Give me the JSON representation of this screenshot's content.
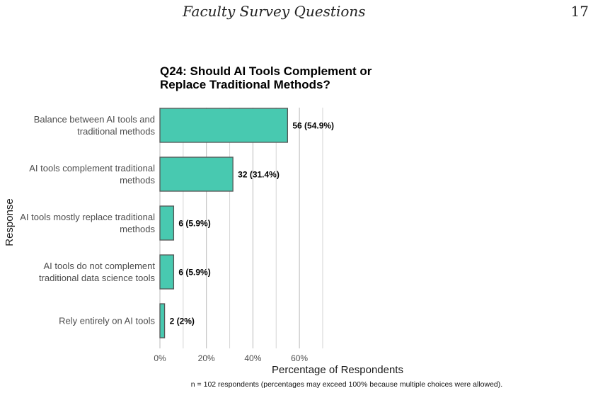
{
  "page": {
    "running_head": "Faculty Survey Questions",
    "page_number": "17"
  },
  "chart_data": {
    "type": "bar",
    "orientation": "horizontal",
    "title_lines": [
      "Q24: Should AI Tools Complement or",
      "Replace Traditional Methods?"
    ],
    "xlabel": "Percentage of Respondents",
    "ylabel": "Response",
    "note": "n = 102 respondents (percentages may exceed 100% because multiple choices were allowed).",
    "xlim": [
      0,
      70
    ],
    "xticks": [
      0,
      20,
      40,
      60
    ],
    "xtick_labels": [
      "0%",
      "20%",
      "40%",
      "60%"
    ],
    "grid": true,
    "bar_color": "#48c9b0",
    "bar_edge_color": "#555555",
    "categories": [
      {
        "label_lines": [
          "Balance between AI tools and",
          "traditional methods"
        ],
        "value": 54.9,
        "data_label": "56 (54.9%)"
      },
      {
        "label_lines": [
          "AI tools complement traditional",
          "methods"
        ],
        "value": 31.4,
        "data_label": "32 (31.4%)"
      },
      {
        "label_lines": [
          "AI tools mostly replace traditional",
          "methods"
        ],
        "value": 5.9,
        "data_label": "6 (5.9%)"
      },
      {
        "label_lines": [
          "AI tools do not complement",
          "traditional data science tools"
        ],
        "value": 5.9,
        "data_label": "6 (5.9%)"
      },
      {
        "label_lines": [
          "Rely entirely on AI tools"
        ],
        "value": 2.0,
        "data_label": "2 (2%)"
      }
    ]
  }
}
